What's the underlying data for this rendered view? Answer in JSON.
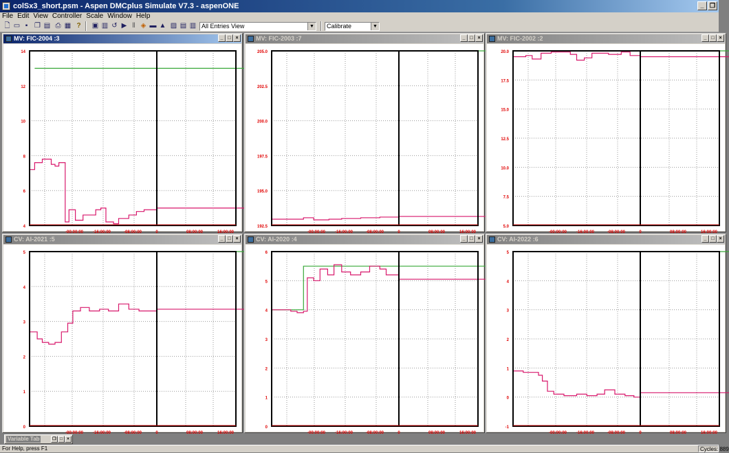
{
  "window": {
    "title": "colSx3_short.psm - Aspen DMCplus Simulate V7.3 - aspenONE",
    "buttons": [
      "_",
      "3"
    ]
  },
  "menu": [
    "File",
    "Edit",
    "View",
    "Controller",
    "Scale",
    "Window",
    "Help"
  ],
  "toolbar": {
    "view_combo": "All Entries View",
    "mode_combo": "Calibrate"
  },
  "time_ticks": [
    "-00:00:00",
    "-16:00:00",
    "-08:00:00",
    "0",
    "08:00:00",
    "16:00:00"
  ],
  "colors": {
    "limit": "#38a838",
    "value": "#d8186c",
    "axis_label": "#e00000"
  },
  "panels": [
    {
      "title": "MV: FIC-2004 :3",
      "active": true,
      "y_ticks": [
        "14",
        "12",
        "10",
        "8",
        "6",
        "4"
      ],
      "chart_data": {
        "type": "line",
        "ylim": [
          4,
          14
        ],
        "limit_high": 13,
        "limit_low": 4
      }
    },
    {
      "title": "MV: FIC-2003 :7",
      "active": false,
      "y_ticks": [
        "205.0",
        "202.5",
        "200.0",
        "197.5",
        "195.0",
        "192.5"
      ],
      "chart_data": {
        "type": "line",
        "ylim": [
          192.5,
          205
        ],
        "limit_high": 205,
        "limit_low": 192.5
      }
    },
    {
      "title": "MV: FIC-2002 :2",
      "active": false,
      "y_ticks": [
        "20.0",
        "17.5",
        "15.0",
        "12.5",
        "10.0",
        "7.5",
        "5.0"
      ],
      "chart_data": {
        "type": "line",
        "ylim": [
          5,
          20
        ],
        "limit_high": 20,
        "limit_low": 5
      }
    },
    {
      "title": "CV: AI-2021 :5",
      "active": false,
      "y_ticks": [
        "5",
        "4",
        "3",
        "2",
        "1",
        "0"
      ],
      "chart_data": {
        "type": "line",
        "ylim": [
          0,
          5
        ],
        "limit_high": 5,
        "limit_low": 0
      }
    },
    {
      "title": "CV: AI-2020 :4",
      "active": false,
      "y_ticks": [
        "6",
        "5",
        "4",
        "3",
        "2",
        "1",
        "0"
      ],
      "chart_data": {
        "type": "line",
        "ylim": [
          0,
          6
        ],
        "limit_high": 5.5,
        "limit_low": 0
      }
    },
    {
      "title": "CV: AI-2022 :6",
      "active": false,
      "y_ticks": [
        "5",
        "4",
        "3",
        "2",
        "1",
        "0",
        "-1"
      ],
      "chart_data": {
        "type": "line",
        "ylim": [
          -1,
          5
        ],
        "limit_high": 5,
        "limit_low": 0
      }
    }
  ],
  "minimized": {
    "title": "Variable Tab"
  },
  "status": {
    "left": "For Help, press F1",
    "right": "Cycles: 889"
  }
}
